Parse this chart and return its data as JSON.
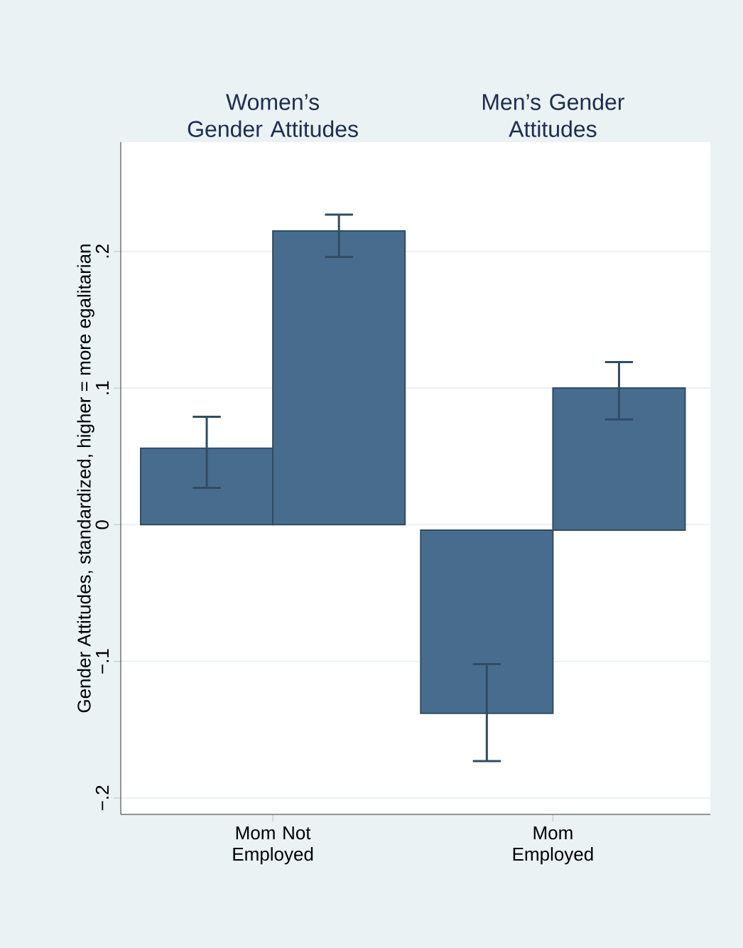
{
  "chart_data": {
    "type": "bar",
    "categories": [
      "Mom Not Employed",
      "Mom Employed"
    ],
    "series": [
      {
        "color": "#476c8e",
        "values": [
          0.056,
          -0.134
        ],
        "base": [
          0,
          -0.004
        ],
        "errors": [
          [
            0.027,
            0.079
          ],
          [
            -0.173,
            -0.102
          ]
        ]
      },
      {
        "color": "#476c8e",
        "values": [
          0.215,
          0.104
        ],
        "base": [
          0,
          -0.004
        ],
        "errors": [
          [
            0.196,
            0.227
          ],
          [
            0.077,
            0.119
          ]
        ]
      }
    ],
    "ylabel": "Gender Attitudes, standardized, higher = more egalitarian",
    "ylim": [
      -0.212,
      0.28
    ],
    "yticks": [
      {
        "value": -0.2,
        "label": "−.2"
      },
      {
        "value": -0.1,
        "label": "−.1"
      },
      {
        "value": 0,
        "label": "0"
      },
      {
        "value": 0.1,
        "label": ".1"
      },
      {
        "value": 0.2,
        "label": ".2"
      }
    ],
    "grid": "y",
    "annotations": [
      "Women’s Gender Attitudes",
      "Men’s Gender Attitudes"
    ]
  }
}
